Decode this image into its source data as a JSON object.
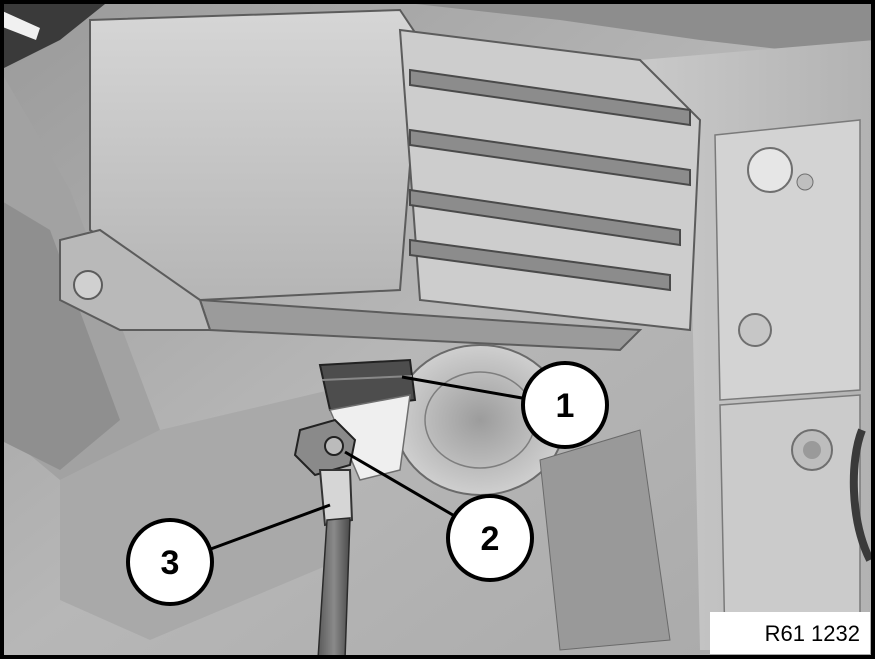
{
  "figure": {
    "reference_code": "R61 1232",
    "callouts": [
      {
        "label": "1"
      },
      {
        "label": "2"
      },
      {
        "label": "3"
      }
    ]
  }
}
